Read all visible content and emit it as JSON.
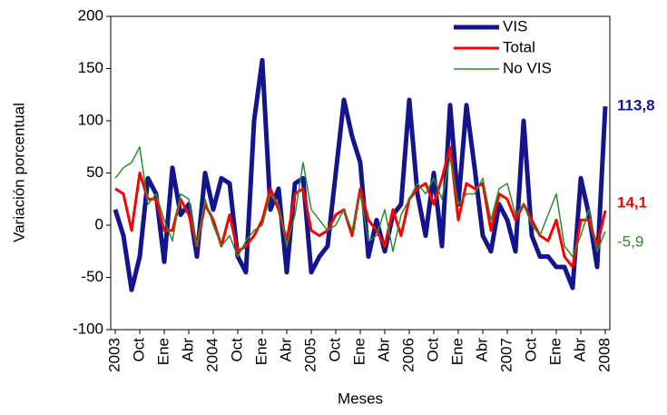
{
  "chart_data": {
    "type": "line",
    "y_label": "Variación porcentual",
    "x_label": "Meses",
    "categories": [
      "2003",
      null,
      null,
      "Oct",
      null,
      null,
      "Ene",
      null,
      null,
      "Abr",
      null,
      null,
      "2004",
      null,
      null,
      "Oct",
      null,
      null,
      "Ene",
      null,
      null,
      "Abr",
      null,
      null,
      "2005",
      null,
      null,
      "Oct",
      null,
      null,
      "Ene",
      null,
      null,
      "Abr",
      null,
      null,
      "2006",
      null,
      null,
      "Oct",
      null,
      null,
      "Ene",
      null,
      null,
      "Abr",
      null,
      null,
      "2007",
      null,
      null,
      "Oct",
      null,
      null,
      "Ene",
      null,
      null,
      "Abr",
      null,
      null,
      "2008"
    ],
    "ylim": [
      -100,
      200
    ],
    "yticks": [
      -100,
      -50,
      0,
      50,
      100,
      150,
      200
    ],
    "legend": "top-right",
    "series": [
      {
        "name": "VIS",
        "color": "#14148c",
        "values": [
          15,
          -10,
          -62,
          -30,
          45,
          30,
          -35,
          55,
          10,
          20,
          -30,
          50,
          15,
          45,
          40,
          -30,
          -45,
          100,
          158,
          15,
          35,
          -45,
          40,
          45,
          -45,
          -30,
          -20,
          50,
          120,
          85,
          60,
          -30,
          5,
          -25,
          10,
          20,
          120,
          30,
          -10,
          50,
          -20,
          115,
          20,
          115,
          55,
          -10,
          -25,
          20,
          5,
          -25,
          100,
          -10,
          -30,
          -30,
          -40,
          -40,
          -60,
          45,
          10,
          -40,
          113.8
        ],
        "value_labels": [
          null,
          null,
          null,
          null,
          null,
          null,
          null,
          null,
          null,
          null,
          null,
          null,
          null,
          null,
          null,
          null,
          null,
          null,
          null,
          null,
          null,
          null,
          null,
          null,
          null,
          null,
          null,
          null,
          null,
          null,
          null,
          null,
          null,
          null,
          null,
          null,
          null,
          null,
          null,
          null,
          null,
          null,
          null,
          null,
          null,
          null,
          null,
          null,
          null,
          null,
          null,
          null,
          null,
          null,
          null,
          null,
          null,
          null,
          null,
          null,
          "113,8"
        ]
      },
      {
        "name": "Total",
        "color": "#ff0000",
        "values": [
          35,
          30,
          -5,
          50,
          25,
          25,
          -5,
          -5,
          25,
          10,
          -20,
          20,
          5,
          -20,
          10,
          -25,
          -20,
          -10,
          5,
          35,
          15,
          -15,
          30,
          35,
          -5,
          -10,
          -5,
          10,
          15,
          -10,
          35,
          5,
          -5,
          -20,
          15,
          -10,
          25,
          35,
          40,
          20,
          45,
          75,
          5,
          40,
          35,
          40,
          -5,
          30,
          25,
          5,
          20,
          5,
          -10,
          -15,
          5,
          -30,
          -40,
          5,
          5,
          -20,
          14.1
        ],
        "value_labels": [
          null,
          null,
          null,
          null,
          null,
          null,
          null,
          null,
          null,
          null,
          null,
          null,
          null,
          null,
          null,
          null,
          null,
          null,
          null,
          null,
          null,
          null,
          null,
          null,
          null,
          null,
          null,
          null,
          null,
          null,
          null,
          null,
          null,
          null,
          null,
          null,
          null,
          null,
          null,
          null,
          null,
          null,
          null,
          null,
          null,
          null,
          null,
          null,
          null,
          null,
          null,
          null,
          null,
          null,
          null,
          null,
          null,
          null,
          null,
          null,
          "14,1"
        ]
      },
      {
        "name": "No VIS",
        "color": "#2e8b2e",
        "values": [
          45,
          55,
          60,
          75,
          20,
          30,
          5,
          -15,
          30,
          25,
          -20,
          25,
          0,
          -20,
          -10,
          -30,
          -15,
          -5,
          0,
          30,
          20,
          -20,
          10,
          60,
          15,
          5,
          -5,
          0,
          15,
          -5,
          30,
          -15,
          -10,
          15,
          -25,
          10,
          25,
          40,
          30,
          45,
          25,
          65,
          20,
          30,
          30,
          45,
          5,
          35,
          40,
          10,
          20,
          0,
          -10,
          10,
          30,
          -20,
          -30,
          -10,
          15,
          -25,
          -5.9
        ],
        "value_labels": [
          null,
          null,
          null,
          null,
          null,
          null,
          null,
          null,
          null,
          null,
          null,
          null,
          null,
          null,
          null,
          null,
          null,
          null,
          null,
          null,
          null,
          null,
          null,
          null,
          null,
          null,
          null,
          null,
          null,
          null,
          null,
          null,
          null,
          null,
          null,
          null,
          null,
          null,
          null,
          null,
          null,
          null,
          null,
          null,
          null,
          null,
          null,
          null,
          null,
          null,
          null,
          null,
          null,
          null,
          null,
          null,
          null,
          null,
          null,
          null,
          "-5,9"
        ]
      }
    ]
  }
}
